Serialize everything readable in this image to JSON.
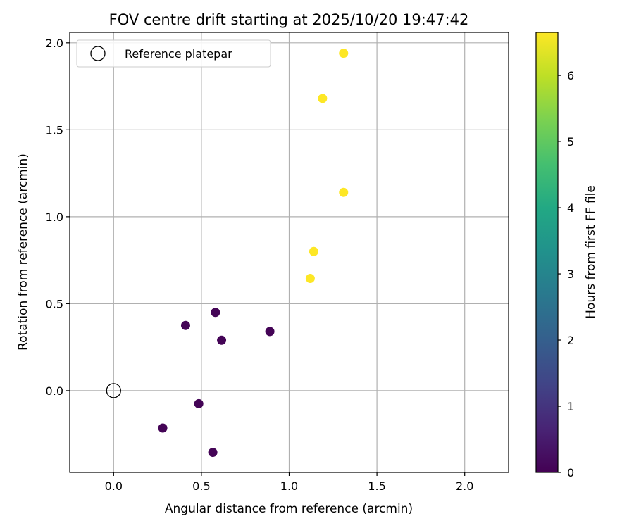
{
  "chart_data": {
    "type": "scatter",
    "title": "FOV centre drift starting at 2025/10/20 19:47:42",
    "xlabel": "Angular distance from reference (arcmin)",
    "ylabel": "Rotation from reference (arcmin)",
    "xlim": [
      -0.25,
      2.25
    ],
    "ylim": [
      -0.47,
      2.06
    ],
    "xticks": [
      0.0,
      0.5,
      1.0,
      1.5,
      2.0
    ],
    "xtick_labels": [
      "0.0",
      "0.5",
      "1.0",
      "1.5",
      "2.0"
    ],
    "yticks": [
      0.0,
      0.5,
      1.0,
      1.5,
      2.0
    ],
    "ytick_labels": [
      "0.0",
      "0.5",
      "1.0",
      "1.5",
      "2.0"
    ],
    "grid": true,
    "legend": {
      "position": "top-left",
      "entries": [
        "Reference platepar"
      ]
    },
    "reference_point": {
      "x": 0.0,
      "y": 0.0,
      "label": "Reference platepar"
    },
    "points": [
      {
        "x": 1.31,
        "y": 1.94,
        "hours": 6.65
      },
      {
        "x": 1.19,
        "y": 1.68,
        "hours": 6.65
      },
      {
        "x": 1.31,
        "y": 1.14,
        "hours": 6.65
      },
      {
        "x": 1.14,
        "y": 0.8,
        "hours": 6.65
      },
      {
        "x": 1.12,
        "y": 0.645,
        "hours": 6.65
      },
      {
        "x": 0.58,
        "y": 0.45,
        "hours": 0.05
      },
      {
        "x": 0.41,
        "y": 0.375,
        "hours": 0.05
      },
      {
        "x": 0.89,
        "y": 0.34,
        "hours": 0.05
      },
      {
        "x": 0.615,
        "y": 0.29,
        "hours": 0.05
      },
      {
        "x": 0.485,
        "y": -0.075,
        "hours": 0.05
      },
      {
        "x": 0.28,
        "y": -0.215,
        "hours": 0.05
      },
      {
        "x": 0.565,
        "y": -0.355,
        "hours": 0.05
      }
    ],
    "colorbar": {
      "label": "Hours from first FF file",
      "range": [
        0,
        6.65
      ],
      "ticks": [
        0,
        1,
        2,
        3,
        4,
        5,
        6
      ],
      "tick_labels": [
        "0",
        "1",
        "2",
        "3",
        "4",
        "5",
        "6"
      ],
      "colormap": "viridis"
    }
  }
}
